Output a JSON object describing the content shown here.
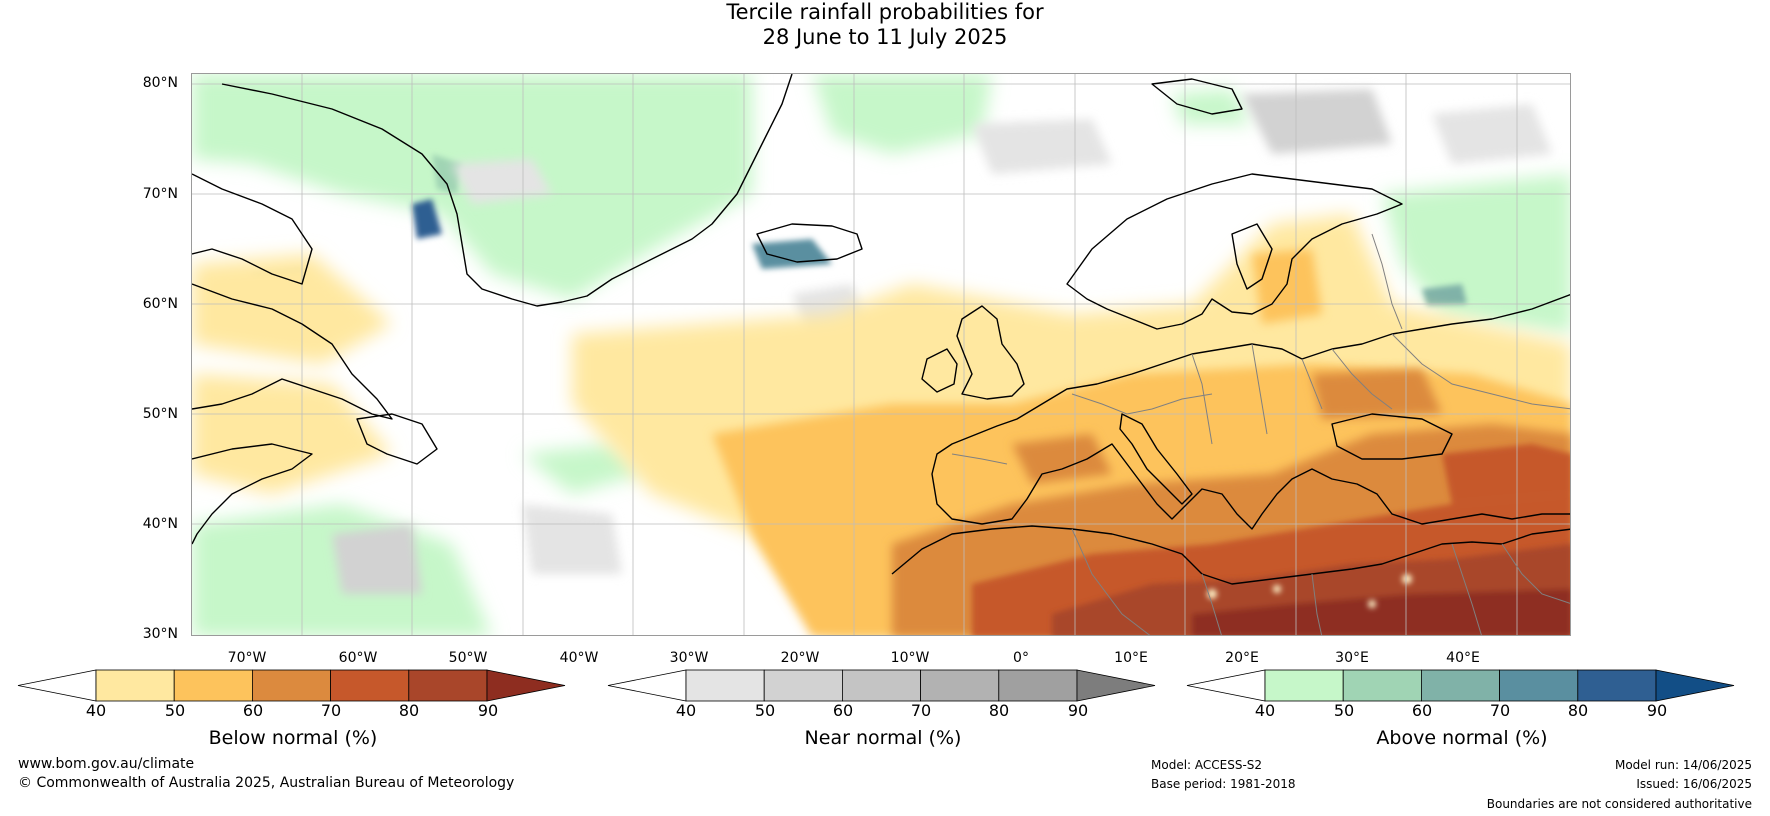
{
  "title": {
    "line1": "Tercile rainfall probabilities for",
    "line2": "28 June to 11 July 2025"
  },
  "map": {
    "lat_labels": [
      "80°N",
      "70°N",
      "60°N",
      "50°N",
      "40°N",
      "30°N"
    ],
    "lon_labels": [
      "70°W",
      "60°W",
      "50°W",
      "40°W",
      "30°W",
      "20°W",
      "10°W",
      "0°",
      "10°E",
      "20°E",
      "30°E",
      "40°E"
    ],
    "lat_range": [
      30,
      80
    ],
    "lon_range": [
      -80,
      45
    ],
    "gridlines": true
  },
  "colorbars": [
    {
      "name": "below",
      "label": "Below normal (%)",
      "ticks": [
        "40",
        "50",
        "60",
        "70",
        "80",
        "90"
      ],
      "colors": [
        "#ffffff",
        "#ffe8a0",
        "#fdc35c",
        "#dc8a3e",
        "#c6582b",
        "#a9462a",
        "#8e2d20"
      ]
    },
    {
      "name": "near",
      "label": "Near normal (%)",
      "ticks": [
        "40",
        "50",
        "60",
        "70",
        "80",
        "90"
      ],
      "colors": [
        "#ffffff",
        "#e4e4e4",
        "#d2d2d2",
        "#c4c4c4",
        "#b2b2b2",
        "#a0a0a0",
        "#7d7d7d"
      ]
    },
    {
      "name": "above",
      "label": "Above normal (%)",
      "ticks": [
        "40",
        "50",
        "60",
        "70",
        "80",
        "90"
      ],
      "colors": [
        "#ffffff",
        "#c6f7c9",
        "#a0d4b4",
        "#80b2a8",
        "#5a8fa0",
        "#2f5f92",
        "#124e86"
      ]
    }
  ],
  "footer": {
    "website": "www.bom.gov.au/climate",
    "copyright": "© Commonwealth of Australia 2025, Australian Bureau of Meteorology",
    "model": "Model: ACCESS-S2",
    "base_period": "Base period: 1981-2018",
    "model_run": "Model run: 14/06/2025",
    "issued": "Issued: 16/06/2025",
    "disclaimer": "Boundaries are not considered authoritative"
  }
}
